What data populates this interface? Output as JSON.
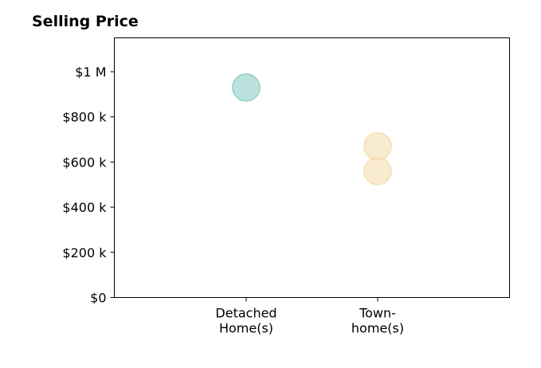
{
  "chart_data": {
    "type": "scatter",
    "title": "Selling Price",
    "xlabel": "",
    "ylabel": "",
    "categories": [
      [
        "Detached",
        "Home(s)"
      ],
      [
        "Town-",
        "home(s)"
      ]
    ],
    "ylim": [
      0,
      1150000
    ],
    "yticks": [
      {
        "value": 0,
        "label": "$0"
      },
      {
        "value": 200000,
        "label": "$200 k"
      },
      {
        "value": 400000,
        "label": "$400 k"
      },
      {
        "value": 600000,
        "label": "$600 k"
      },
      {
        "value": 800000,
        "label": "$800 k"
      },
      {
        "value": 1000000,
        "label": "$1 M"
      }
    ],
    "points": [
      {
        "category": 0,
        "value": 930000,
        "color": "#8fcfc6"
      },
      {
        "category": 1,
        "value": 670000,
        "color": "#f5deb0"
      },
      {
        "category": 1,
        "value": 560000,
        "color": "#f5deb0"
      }
    ],
    "grid": false,
    "legend": "none"
  }
}
